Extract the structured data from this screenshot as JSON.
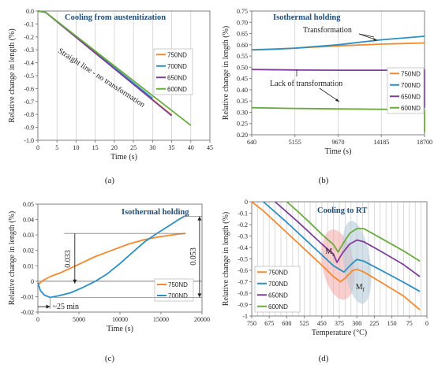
{
  "panels": [
    {
      "id": "a",
      "caption": "(a)",
      "chart_data": {
        "type": "line",
        "title": "Cooling from austenitization",
        "xlabel": "Time (s)",
        "ylabel": "Relative change in length (%)",
        "xlim": [
          0,
          45
        ],
        "ylim": [
          -1.0,
          0.0
        ],
        "x_ticks": [
          "0",
          "5",
          "10",
          "15",
          "20",
          "25",
          "30",
          "35",
          "40",
          "45"
        ],
        "y_ticks": [
          "0.0",
          "-0.1",
          "-0.2",
          "-0.3",
          "-0.4",
          "-0.5",
          "-0.6",
          "-0.7",
          "-0.8",
          "-0.9",
          "-1.0"
        ],
        "grid": "vertical",
        "legend": "right",
        "annotations": [
          {
            "text": "Straight line - no transformation",
            "x": 12,
            "y": -0.5
          }
        ],
        "series": [
          {
            "name": "750ND",
            "color": "#f28a30",
            "points": [
              [
                0,
                0
              ],
              [
                2,
                -0.01
              ],
              [
                35,
                -0.805
              ]
            ]
          },
          {
            "name": "700ND",
            "color": "#2b8fc4",
            "points": [
              [
                0,
                0
              ],
              [
                2,
                -0.01
              ],
              [
                30,
                -0.675
              ]
            ]
          },
          {
            "name": "650ND",
            "color": "#7b3f98",
            "points": [
              [
                0,
                0
              ],
              [
                2,
                -0.01
              ],
              [
                35,
                -0.81
              ]
            ]
          },
          {
            "name": "600ND",
            "color": "#6aab3f",
            "points": [
              [
                0,
                0
              ],
              [
                2,
                -0.01
              ],
              [
                40,
                -0.885
              ]
            ]
          }
        ]
      }
    },
    {
      "id": "b",
      "caption": "(b)",
      "chart_data": {
        "type": "line",
        "title": "Isothermal holding",
        "xlabel": "Time (s)",
        "ylabel": "Relative change in length (%)",
        "xlim": [
          640,
          18700
        ],
        "ylim": [
          0.2,
          0.75
        ],
        "x_ticks": [
          "640",
          "5155",
          "9670",
          "14185",
          "18700"
        ],
        "y_ticks": [
          "0.75",
          "0.70",
          "0.65",
          "0.60",
          "0.55",
          "0.50",
          "0.45",
          "0.40",
          "0.35",
          "0.30",
          "0.25",
          "0.20"
        ],
        "grid": "vertical",
        "legend": "right",
        "annotations": [
          {
            "text": "Transformation",
            "x": 9200,
            "y": 0.66
          },
          {
            "text": "Lack of transformation",
            "x": 3200,
            "y": 0.385
          }
        ],
        "series": [
          {
            "name": "750ND",
            "color": "#f28a30",
            "points": [
              [
                640,
                0.578
              ],
              [
                5155,
                0.585
              ],
              [
                9670,
                0.595
              ],
              [
                14185,
                0.603
              ],
              [
                18700,
                0.608
              ]
            ]
          },
          {
            "name": "700ND",
            "color": "#2b8fc4",
            "points": [
              [
                640,
                0.577
              ],
              [
                3000,
                0.58
              ],
              [
                5155,
                0.585
              ],
              [
                9670,
                0.6
              ],
              [
                14185,
                0.622
              ],
              [
                18700,
                0.638
              ]
            ]
          },
          {
            "name": "650ND",
            "color": "#7b3f98",
            "points": [
              [
                640,
                0.49
              ],
              [
                5155,
                0.488
              ],
              [
                9670,
                0.487
              ],
              [
                14185,
                0.487
              ],
              [
                18700,
                0.487
              ]
            ]
          },
          {
            "name": "600ND",
            "color": "#6aab3f",
            "points": [
              [
                640,
                0.32
              ],
              [
                5155,
                0.317
              ],
              [
                9670,
                0.315
              ],
              [
                14185,
                0.313
              ],
              [
                18700,
                0.312
              ]
            ]
          }
        ]
      }
    },
    {
      "id": "c",
      "caption": "(c)",
      "chart_data": {
        "type": "line",
        "title": "Isothermal holding",
        "xlabel": "Time (s)",
        "ylabel": "Relative change in length (%)",
        "xlim": [
          0,
          20000
        ],
        "ylim": [
          -0.02,
          0.05
        ],
        "x_ticks": [
          "0",
          "5000",
          "10000",
          "15000",
          "20000"
        ],
        "y_ticks": [
          "0.05",
          "0.04",
          "0.03",
          "0.02",
          "0.01",
          "0",
          "-0.01",
          "-0.02"
        ],
        "grid": "none",
        "legend": "right",
        "annotations": [
          {
            "text": "0.033",
            "x": 3000,
            "y": 0.0145
          },
          {
            "text": "0.053",
            "x": 19200,
            "y": 0.016
          },
          {
            "text": "~25 min",
            "x": 2200,
            "y": -0.0165
          }
        ],
        "series": [
          {
            "name": "750ND",
            "color": "#f28a30",
            "points": [
              [
                0,
                -0.001
              ],
              [
                200,
                -0.0015
              ],
              [
                600,
                0.0005
              ],
              [
                1500,
                0.003
              ],
              [
                3000,
                0.006
              ],
              [
                5000,
                0.011
              ],
              [
                7000,
                0.016
              ],
              [
                9000,
                0.02
              ],
              [
                11000,
                0.024
              ],
              [
                13000,
                0.027
              ],
              [
                15000,
                0.029
              ],
              [
                17000,
                0.0305
              ],
              [
                18000,
                0.031
              ]
            ]
          },
          {
            "name": "700ND",
            "color": "#2b8fc4",
            "points": [
              [
                0,
                -0.001
              ],
              [
                300,
                -0.006
              ],
              [
                800,
                -0.009
              ],
              [
                1500,
                -0.0105
              ],
              [
                2500,
                -0.0095
              ],
              [
                4000,
                -0.0075
              ],
              [
                5500,
                -0.004
              ],
              [
                7000,
                0.0
              ],
              [
                8500,
                0.005
              ],
              [
                10000,
                0.0115
              ],
              [
                11500,
                0.0185
              ],
              [
                13000,
                0.0255
              ],
              [
                14500,
                0.031
              ],
              [
                16000,
                0.036
              ],
              [
                17000,
                0.0395
              ],
              [
                17800,
                0.042
              ],
              [
                18200,
                0.0425
              ]
            ]
          }
        ]
      }
    },
    {
      "id": "d",
      "caption": "(d)",
      "chart_data": {
        "type": "line",
        "title": "Cooling to RT",
        "xlabel": "Temperature (°C)",
        "ylabel": "Relative change in length (%)",
        "xlim": [
          750,
          0
        ],
        "ylim": [
          -1.0,
          0.0
        ],
        "x_ticks": [
          "750",
          "675",
          "600",
          "525",
          "450",
          "375",
          "300",
          "225",
          "150",
          "75",
          "0"
        ],
        "y_ticks": [
          "0",
          "-0.1",
          "-0.2",
          "-0.3",
          "-0.4",
          "-0.5",
          "-0.6",
          "-0.7",
          "-0.8",
          "-0.9",
          "-1"
        ],
        "grid": "vertical",
        "legend": "bottom-left",
        "annotations": [
          {
            "text": "M",
            "sub": "s",
            "x": 435,
            "y": -0.455
          },
          {
            "text": "M",
            "sub": "f",
            "x": 305,
            "y": -0.765
          }
        ],
        "series": [
          {
            "name": "750ND",
            "color": "#f28a30",
            "points": [
              [
                750,
                0.0
              ],
              [
                700,
                -0.08
              ],
              [
                650,
                -0.175
              ],
              [
                600,
                -0.27
              ],
              [
                550,
                -0.365
              ],
              [
                500,
                -0.46
              ],
              [
                450,
                -0.555
              ],
              [
                400,
                -0.655
              ],
              [
                370,
                -0.7
              ],
              [
                350,
                -0.67
              ],
              [
                320,
                -0.605
              ],
              [
                300,
                -0.59
              ],
              [
                270,
                -0.615
              ],
              [
                200,
                -0.7
              ],
              [
                100,
                -0.825
              ],
              [
                30,
                -0.945
              ]
            ]
          },
          {
            "name": "700ND",
            "color": "#2b8fc4",
            "points": [
              [
                700,
                0.0
              ],
              [
                650,
                -0.09
              ],
              [
                600,
                -0.18
              ],
              [
                550,
                -0.275
              ],
              [
                500,
                -0.37
              ],
              [
                450,
                -0.465
              ],
              [
                400,
                -0.56
              ],
              [
                355,
                -0.615
              ],
              [
                330,
                -0.56
              ],
              [
                300,
                -0.505
              ],
              [
                270,
                -0.52
              ],
              [
                200,
                -0.595
              ],
              [
                100,
                -0.705
              ],
              [
                30,
                -0.785
              ]
            ]
          },
          {
            "name": "650ND",
            "color": "#7b3f98",
            "points": [
              [
                650,
                0.0
              ],
              [
                600,
                -0.09
              ],
              [
                550,
                -0.18
              ],
              [
                500,
                -0.275
              ],
              [
                450,
                -0.37
              ],
              [
                400,
                -0.46
              ],
              [
                385,
                -0.53
              ],
              [
                360,
                -0.445
              ],
              [
                330,
                -0.37
              ],
              [
                300,
                -0.335
              ],
              [
                270,
                -0.35
              ],
              [
                200,
                -0.43
              ],
              [
                100,
                -0.55
              ],
              [
                30,
                -0.655
              ]
            ]
          },
          {
            "name": "600ND",
            "color": "#6aab3f",
            "points": [
              [
                600,
                0.0
              ],
              [
                550,
                -0.09
              ],
              [
                500,
                -0.185
              ],
              [
                450,
                -0.285
              ],
              [
                400,
                -0.375
              ],
              [
                380,
                -0.44
              ],
              [
                360,
                -0.37
              ],
              [
                330,
                -0.275
              ],
              [
                300,
                -0.235
              ],
              [
                270,
                -0.235
              ],
              [
                200,
                -0.315
              ],
              [
                100,
                -0.43
              ],
              [
                30,
                -0.52
              ]
            ]
          }
        ]
      }
    }
  ]
}
